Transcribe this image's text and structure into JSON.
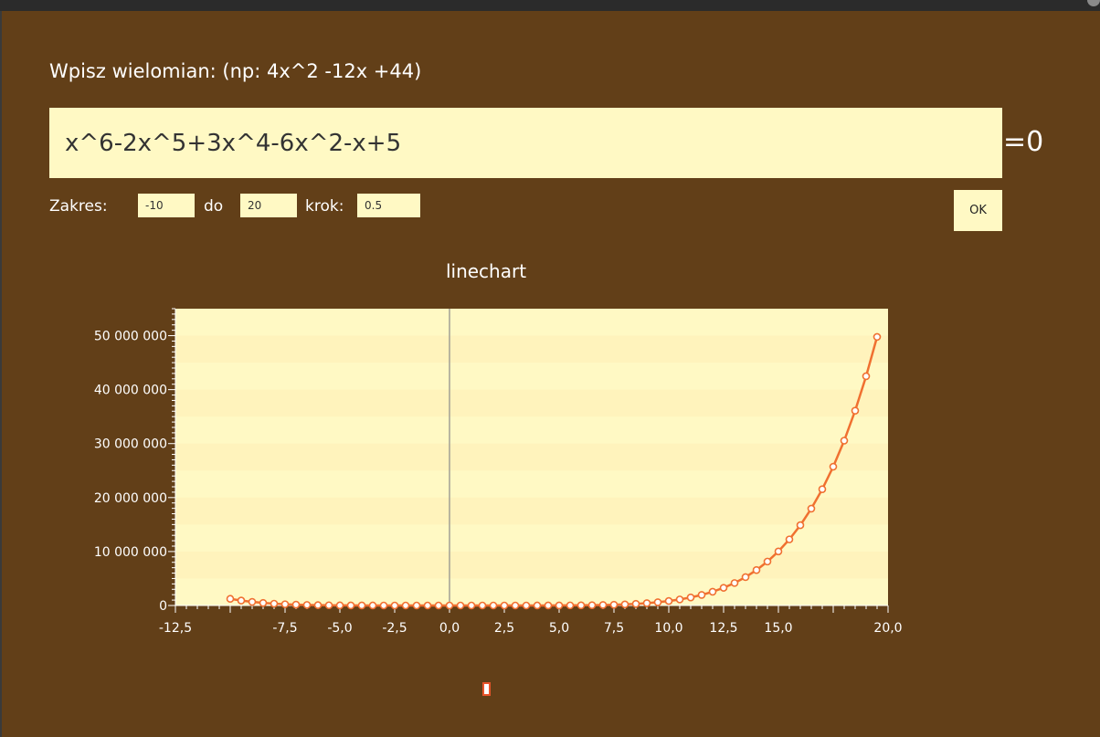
{
  "form": {
    "prompt": "Wpisz wielomian: (np: 4x^2 -12x +44)",
    "polynomial": "x^6-2x^5+3x^4-6x^2-x+5",
    "equals": "=0",
    "range_label": "Zakres:",
    "range_from": "-10",
    "to_label": "do",
    "range_to": "20",
    "step_label": "krok:",
    "step": "0.5",
    "ok_label": "OK"
  },
  "colors": {
    "background": "#623f18",
    "input_bg": "#fff9c4",
    "plot_bg": "#fff9c4",
    "plot_band": "#fff3bc",
    "series": "#f07030"
  },
  "chart_data": {
    "type": "line",
    "title": "linechart",
    "xlim": [
      -12.5,
      20
    ],
    "ylim": [
      0,
      55000000
    ],
    "x_ticks": [
      -12.5,
      -7.5,
      -5,
      -2.5,
      0,
      2.5,
      5,
      7.5,
      10,
      12.5,
      15,
      20
    ],
    "x_tick_labels": [
      "-12,5",
      "-7,5",
      "-5,0",
      "-2,5",
      "0,0",
      "2,5",
      "5,0",
      "7,5",
      "10,0",
      "12,5",
      "15,0",
      "20,0"
    ],
    "y_ticks": [
      0,
      10000000,
      20000000,
      30000000,
      40000000,
      50000000
    ],
    "y_tick_labels": [
      "0",
      "10 000 000",
      "20 000 000",
      "30 000 000",
      "40 000 000",
      "50 000 000"
    ],
    "grid": "horizontal bands",
    "legend": "none",
    "series": [
      {
        "polynomial": "x^6-2x^5+3x^4-6x^2-x+5",
        "x_start": -10,
        "x_end": 19.5,
        "x_step": 0.5
      }
    ]
  }
}
